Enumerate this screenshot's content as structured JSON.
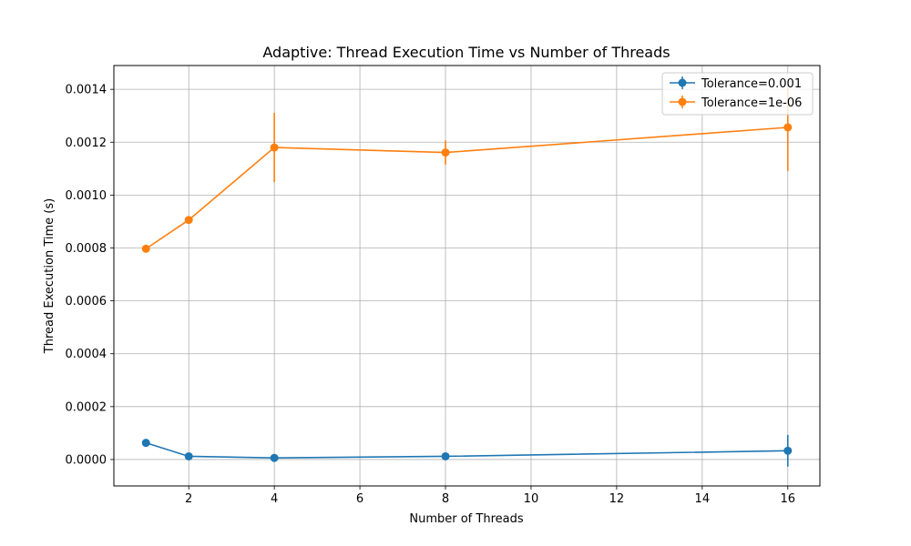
{
  "chart_data": {
    "type": "line",
    "title": "Adaptive: Thread Execution Time vs Number of Threads",
    "xlabel": "Number of Threads",
    "ylabel": "Thread Execution Time (s)",
    "xlim": [
      0.25,
      16.75
    ],
    "ylim": [
      -0.0001,
      0.00149
    ],
    "x_ticks": [
      "2",
      "4",
      "6",
      "8",
      "10",
      "12",
      "14",
      "16"
    ],
    "y_ticks": [
      "0.0000",
      "0.0002",
      "0.0004",
      "0.0006",
      "0.0008",
      "0.0010",
      "0.0012",
      "0.0014"
    ],
    "grid": true,
    "legend_position": "top-right",
    "x": [
      1,
      2,
      4,
      8,
      16
    ],
    "series": [
      {
        "name": "Tolerance=0.001",
        "color": "#1f77b4",
        "values": [
          6.3e-05,
          1.2e-05,
          6e-06,
          1.2e-05,
          3.3e-05
        ],
        "errors": [
          2e-06,
          1e-06,
          1e-06,
          1e-06,
          6e-05
        ]
      },
      {
        "name": "Tolerance=1e-06",
        "color": "#ff7f0e",
        "values": [
          0.000797,
          0.000906,
          0.00118,
          0.001161,
          0.001256
        ],
        "errors": [
          5e-06,
          6e-06,
          0.000131,
          4.6e-05,
          0.000165
        ]
      }
    ]
  }
}
